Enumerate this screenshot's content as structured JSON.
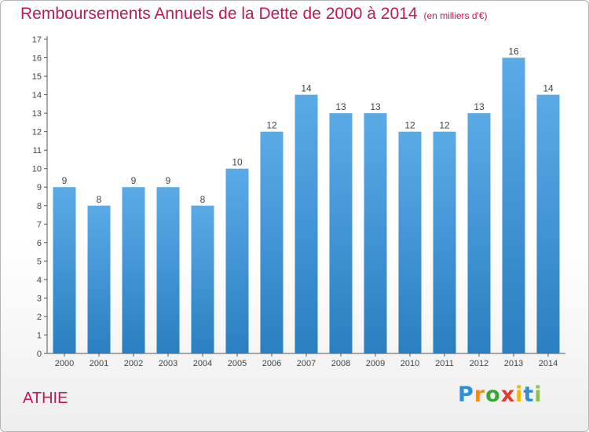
{
  "chart_data": {
    "type": "bar",
    "title": "Remboursements Annuels de la Dette de 2000 à 2014",
    "subtitle": "(en milliers d'€)",
    "xlabel": "",
    "ylabel": "",
    "categories": [
      "2000",
      "2001",
      "2002",
      "2003",
      "2004",
      "2005",
      "2006",
      "2007",
      "2008",
      "2009",
      "2010",
      "2011",
      "2012",
      "2013",
      "2014"
    ],
    "values": [
      9,
      8,
      9,
      9,
      8,
      10,
      12,
      14,
      13,
      13,
      12,
      12,
      13,
      16,
      14
    ],
    "ylim": [
      0,
      17
    ],
    "yticks": [
      "0",
      "1",
      "2",
      "3",
      "4",
      "5",
      "6",
      "7",
      "8",
      "9",
      "10",
      "11",
      "12",
      "13",
      "14",
      "15",
      "16",
      "17"
    ],
    "grid": false,
    "bar_color_top": "#5aaae6",
    "bar_color_bottom": "#2a7fc0"
  },
  "commune": "ATHIE",
  "logo": {
    "letters": [
      "P",
      "r",
      "o",
      "x",
      "i",
      "t",
      "i"
    ],
    "colors": [
      "#2e8fd8",
      "#f08c1c",
      "#3aa63a",
      "#e33b2e",
      "#f5b800",
      "#2e8fd8",
      "#8bc34a"
    ]
  }
}
